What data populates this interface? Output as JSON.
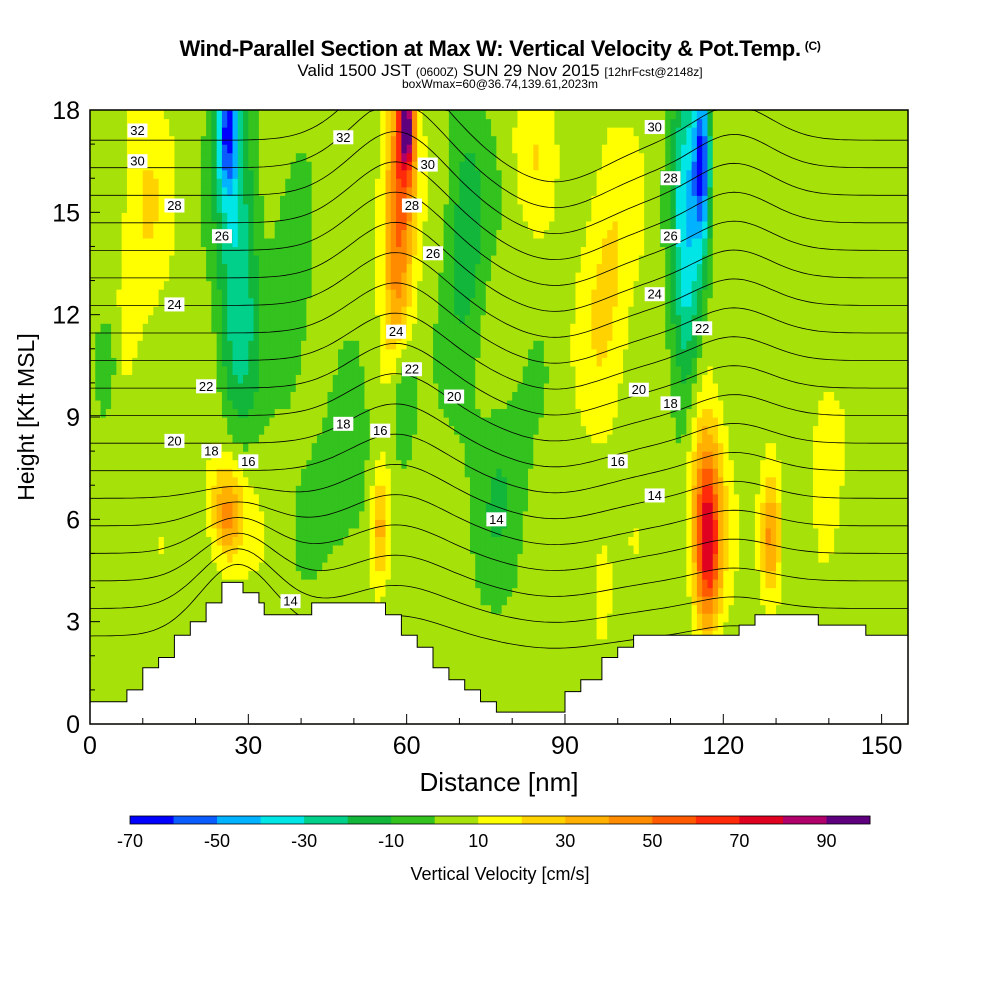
{
  "title": "Wind-Parallel Section at Max W: Vertical Velocity & Pot.Temp.",
  "title_mark": "(C)",
  "subtitle_main": "Valid 1500 JST",
  "subtitle_utc": "(0600Z)",
  "subtitle_date": "SUN 29 Nov 2015",
  "subtitle_fcst": "[12hrFcst@2148z]",
  "box_line": "boxWmax=60@36.74,139.61,2023m",
  "chart_data": {
    "type": "heatmap",
    "xlabel": "Distance [nm]",
    "ylabel": "Height [Kft MSL]",
    "xlim": [
      0,
      155
    ],
    "ylim": [
      0,
      18
    ],
    "x_ticks": [
      0,
      30,
      60,
      90,
      120,
      150
    ],
    "y_ticks": [
      0,
      3,
      6,
      9,
      12,
      15,
      18
    ],
    "colorbar": {
      "label": "Vertical Velocity [cm/s]",
      "levels": [
        -70,
        -60,
        -50,
        -40,
        -30,
        -20,
        -10,
        0,
        10,
        20,
        30,
        40,
        50,
        60,
        70,
        80,
        90,
        100
      ],
      "tick_labels": [
        "-70",
        "-50",
        "-30",
        "-10",
        "10",
        "30",
        "50",
        "70",
        "90"
      ],
      "colors": [
        "#0000ff",
        "#0a5cff",
        "#00b2ff",
        "#00e5e5",
        "#00d08a",
        "#12b63a",
        "#33c21e",
        "#a6e20a",
        "#ffff00",
        "#ffd200",
        "#ffb000",
        "#ff8c00",
        "#ff5a00",
        "#ff2a0a",
        "#e00020",
        "#b0006a",
        "#5e007e"
      ]
    },
    "terrain": [
      [
        0,
        0.65
      ],
      [
        7,
        0.65
      ],
      [
        7,
        1.0
      ],
      [
        10,
        1.0
      ],
      [
        10,
        1.65
      ],
      [
        13,
        1.65
      ],
      [
        13,
        1.95
      ],
      [
        16,
        1.95
      ],
      [
        16,
        2.6
      ],
      [
        19,
        2.6
      ],
      [
        19,
        3.0
      ],
      [
        22,
        3.0
      ],
      [
        22,
        3.55
      ],
      [
        25,
        3.55
      ],
      [
        25,
        4.15
      ],
      [
        29,
        4.15
      ],
      [
        29,
        3.85
      ],
      [
        32,
        3.85
      ],
      [
        32,
        3.55
      ],
      [
        33,
        3.55
      ],
      [
        33,
        3.2
      ],
      [
        42,
        3.2
      ],
      [
        42,
        3.55
      ],
      [
        56,
        3.55
      ],
      [
        56,
        3.2
      ],
      [
        59,
        3.2
      ],
      [
        59,
        2.6
      ],
      [
        62,
        2.6
      ],
      [
        62,
        2.25
      ],
      [
        65,
        2.25
      ],
      [
        65,
        1.65
      ],
      [
        68,
        1.65
      ],
      [
        68,
        1.3
      ],
      [
        71,
        1.3
      ],
      [
        71,
        1.0
      ],
      [
        74,
        1.0
      ],
      [
        74,
        0.65
      ],
      [
        77,
        0.65
      ],
      [
        77,
        0.35
      ],
      [
        90,
        0.35
      ],
      [
        90,
        0.95
      ],
      [
        93,
        0.95
      ],
      [
        93,
        1.3
      ],
      [
        97,
        1.3
      ],
      [
        97,
        1.95
      ],
      [
        100,
        1.95
      ],
      [
        100,
        2.25
      ],
      [
        103,
        2.25
      ],
      [
        103,
        2.6
      ],
      [
        123,
        2.6
      ],
      [
        123,
        2.9
      ],
      [
        126,
        2.9
      ],
      [
        126,
        3.2
      ],
      [
        138,
        3.2
      ],
      [
        138,
        2.9
      ],
      [
        147,
        2.9
      ],
      [
        147,
        2.6
      ],
      [
        155,
        2.6
      ]
    ],
    "w_features": [
      {
        "x": 28,
        "z": 13.5,
        "w": -35,
        "sx": 4,
        "sz": 6
      },
      {
        "x": 26,
        "z": 17.5,
        "w": -52,
        "sx": 2,
        "sz": 2
      },
      {
        "x": 59,
        "z": 16.0,
        "w": 52,
        "sx": 3,
        "sz": 2.8
      },
      {
        "x": 60,
        "z": 17.6,
        "w": 70,
        "sx": 1.5,
        "sz": 1.2
      },
      {
        "x": 58,
        "z": 12.0,
        "w": 28,
        "sx": 2.5,
        "sz": 3
      },
      {
        "x": 59,
        "z": 9.8,
        "w": -30,
        "sx": 2.5,
        "sz": 1.8
      },
      {
        "x": 71,
        "z": 14.5,
        "w": -22,
        "sx": 4,
        "sz": 4
      },
      {
        "x": 113,
        "z": 14.0,
        "w": -42,
        "sx": 3,
        "sz": 6
      },
      {
        "x": 116,
        "z": 16.5,
        "w": -58,
        "sx": 1.6,
        "sz": 2.5
      },
      {
        "x": 117,
        "z": 5.2,
        "w": 62,
        "sx": 2.5,
        "sz": 2.4
      },
      {
        "x": 116,
        "z": 7.5,
        "w": 26,
        "sx": 4,
        "sz": 3
      },
      {
        "x": 129,
        "z": 5.5,
        "w": 42,
        "sx": 2,
        "sz": 1.8
      },
      {
        "x": 26,
        "z": 6.2,
        "w": 36,
        "sx": 3,
        "sz": 1.4
      },
      {
        "x": 27,
        "z": 7.0,
        "w": 12,
        "sx": 5,
        "sz": 2.5
      },
      {
        "x": 55,
        "z": 5.8,
        "w": 32,
        "sx": 2,
        "sz": 1.8
      },
      {
        "x": 98,
        "z": 13.0,
        "w": 18,
        "sx": 5,
        "sz": 4
      },
      {
        "x": 97,
        "z": 4.0,
        "w": 12,
        "sx": 2,
        "sz": 1.6
      },
      {
        "x": 48,
        "z": 7.0,
        "w": -14,
        "sx": 6,
        "sz": 2.5
      },
      {
        "x": 78,
        "z": 7.0,
        "w": -14,
        "sx": 6,
        "sz": 3
      },
      {
        "x": 3,
        "z": 10.5,
        "w": -20,
        "sx": 2,
        "sz": 1.5
      },
      {
        "x": 140,
        "z": 8.5,
        "w": 14,
        "sx": 3,
        "sz": 2
      },
      {
        "x": 10,
        "z": 15.0,
        "w": 14,
        "sx": 5,
        "sz": 4
      },
      {
        "x": 84,
        "z": 17.0,
        "w": 12,
        "sx": 4,
        "sz": 2
      },
      {
        "x": 38,
        "z": 12.0,
        "w": -15,
        "sx": 4,
        "sz": 3
      }
    ],
    "w_background": 5,
    "theta_levels": [
      14,
      15,
      16,
      17,
      18,
      19,
      20,
      21,
      22,
      23,
      24,
      25,
      26,
      27,
      28,
      29,
      30,
      31,
      32
    ],
    "theta_labels": [
      {
        "text": "32",
        "x": 9,
        "y": 17.4
      },
      {
        "text": "30",
        "x": 9,
        "y": 16.5
      },
      {
        "text": "28",
        "x": 16,
        "y": 15.2
      },
      {
        "text": "26",
        "x": 25,
        "y": 14.3
      },
      {
        "text": "24",
        "x": 16,
        "y": 12.3
      },
      {
        "text": "22",
        "x": 22,
        "y": 9.9
      },
      {
        "text": "20",
        "x": 16,
        "y": 8.3
      },
      {
        "text": "18",
        "x": 23,
        "y": 8.0
      },
      {
        "text": "16",
        "x": 30,
        "y": 7.7
      },
      {
        "text": "14",
        "x": 38,
        "y": 3.6
      },
      {
        "text": "32",
        "x": 48,
        "y": 17.2
      },
      {
        "text": "30",
        "x": 64,
        "y": 16.4
      },
      {
        "text": "28",
        "x": 61,
        "y": 15.2
      },
      {
        "text": "26",
        "x": 65,
        "y": 13.8
      },
      {
        "text": "24",
        "x": 58,
        "y": 11.5
      },
      {
        "text": "22",
        "x": 61,
        "y": 10.4
      },
      {
        "text": "20",
        "x": 69,
        "y": 9.6
      },
      {
        "text": "18",
        "x": 48,
        "y": 8.8
      },
      {
        "text": "16",
        "x": 55,
        "y": 8.6
      },
      {
        "text": "14",
        "x": 77,
        "y": 6.0
      },
      {
        "text": "30",
        "x": 107,
        "y": 17.5
      },
      {
        "text": "28",
        "x": 110,
        "y": 16.0
      },
      {
        "text": "26",
        "x": 110,
        "y": 14.3
      },
      {
        "text": "24",
        "x": 107,
        "y": 12.6
      },
      {
        "text": "22",
        "x": 116,
        "y": 11.6
      },
      {
        "text": "20",
        "x": 104,
        "y": 9.8
      },
      {
        "text": "18",
        "x": 110,
        "y": 9.4
      },
      {
        "text": "16",
        "x": 100,
        "y": 7.7
      },
      {
        "text": "14",
        "x": 107,
        "y": 6.7
      }
    ]
  }
}
